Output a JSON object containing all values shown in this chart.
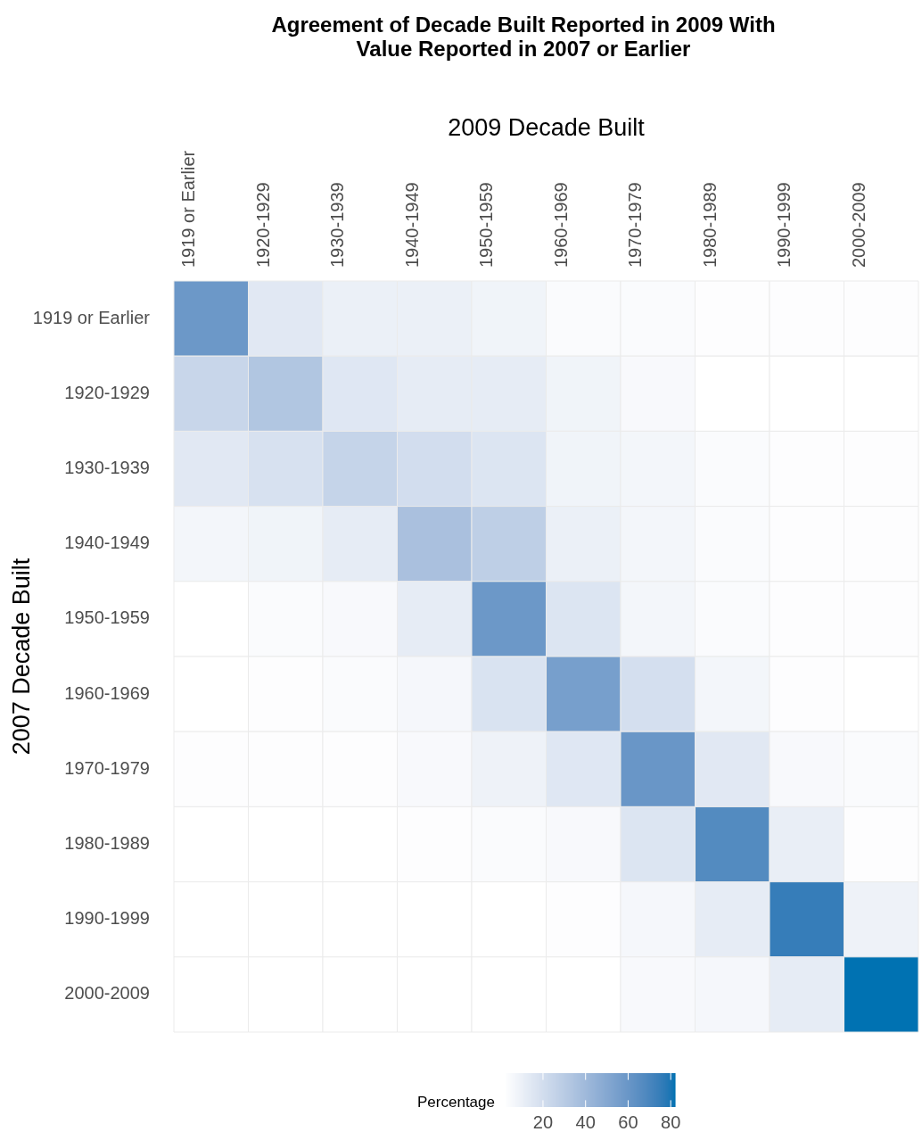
{
  "chart_data": {
    "type": "heatmap",
    "title": "Agreement of Decade Built Reported in 2009 With Value Reported in 2007 or Earlier",
    "xlabel": "2009 Decade Built",
    "ylabel": "2007 Decade Built",
    "clabel": "Percentage",
    "categories": [
      "1919 or Earlier",
      "1920-1929",
      "1930-1939",
      "1940-1949",
      "1950-1959",
      "1960-1969",
      "1970-1979",
      "1980-1989",
      "1990-1999",
      "2000-2009"
    ],
    "y_categories": [
      "1919 or Earlier",
      "1920-1929",
      "1930-1939",
      "1940-1949",
      "1950-1959",
      "1960-1969",
      "1970-1979",
      "1980-1989",
      "1990-1999",
      "2000-2009"
    ],
    "cells": [
      [
        59,
        14,
        10,
        10,
        8,
        4,
        4,
        3,
        3,
        3
      ],
      [
        24,
        33,
        15,
        12,
        12,
        8,
        5,
        2,
        2,
        2
      ],
      [
        14,
        18,
        25,
        20,
        16,
        8,
        7,
        4,
        3,
        3
      ],
      [
        7,
        8,
        12,
        36,
        28,
        10,
        7,
        4,
        3,
        3
      ],
      [
        2,
        4,
        5,
        12,
        59,
        16,
        7,
        4,
        3,
        3
      ],
      [
        2,
        3,
        4,
        6,
        17,
        55,
        19,
        7,
        3,
        2
      ],
      [
        3,
        3,
        3,
        5,
        9,
        15,
        60,
        14,
        5,
        4
      ],
      [
        2,
        2,
        2,
        3,
        4,
        5,
        16,
        67,
        11,
        3
      ],
      [
        2,
        2,
        2,
        2,
        2,
        3,
        6,
        12,
        75,
        9
      ],
      [
        2,
        2,
        2,
        2,
        2,
        2,
        5,
        6,
        12,
        82
      ]
    ],
    "clim": [
      2,
      82
    ],
    "cticks": [
      20,
      40,
      60,
      80
    ],
    "colors": [
      "#ffffff",
      "#0072b2"
    ]
  }
}
